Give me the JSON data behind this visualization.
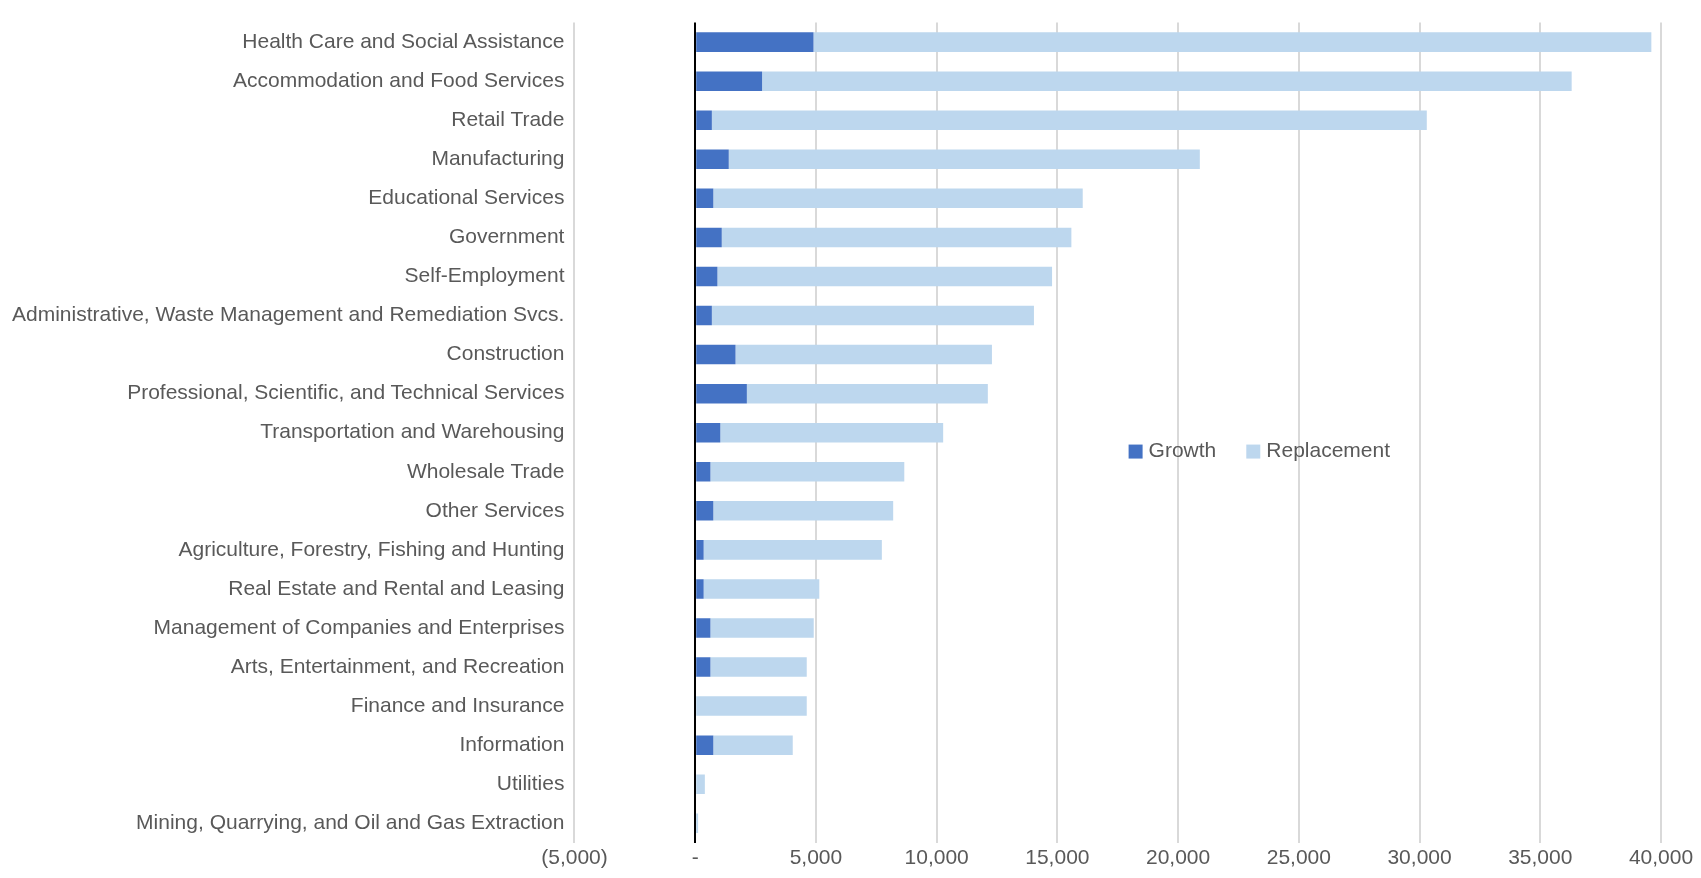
{
  "chart_data": {
    "type": "bar",
    "orientation": "horizontal",
    "stacked": true,
    "categories": [
      "Health Care and Social Assistance",
      "Accommodation and Food Services",
      "Retail Trade",
      "Manufacturing",
      "Educational Services",
      "Government",
      "Self-Employment",
      "Administrative, Waste Management and Remediation Svcs.",
      "Construction",
      "Professional, Scientific, and Technical Services",
      "Transportation and Warehousing",
      "Wholesale Trade",
      "Other Services",
      "Agriculture, Forestry, Fishing and Hunting",
      "Real Estate and Rental and Leasing",
      "Management of Companies and Enterprises",
      "Arts, Entertainment, and Recreation",
      "Finance and Insurance",
      "Information",
      "Utilities",
      "Mining, Quarrying, and Oil and Gas Extraction"
    ],
    "series": [
      {
        "name": "Growth",
        "color": "#4472c4",
        "values": [
          4900,
          2770,
          690,
          1390,
          750,
          1100,
          920,
          690,
          1670,
          2140,
          1040,
          630,
          750,
          350,
          350,
          630,
          630,
          0,
          750,
          0,
          0
        ]
      },
      {
        "name": "Replacement",
        "color": "#bdd7ee",
        "values": [
          34700,
          33530,
          29610,
          19510,
          15300,
          14480,
          13860,
          13340,
          10620,
          9980,
          9230,
          8030,
          7450,
          7380,
          4790,
          4280,
          3990,
          4620,
          3290,
          400,
          120
        ]
      }
    ],
    "xlim": [
      -5000,
      40000
    ],
    "xticks": [
      {
        "value": -5000,
        "label": "(5,000)"
      },
      {
        "value": 0,
        "label": "-"
      },
      {
        "value": 5000,
        "label": "5,000"
      },
      {
        "value": 10000,
        "label": "10,000"
      },
      {
        "value": 15000,
        "label": "15,000"
      },
      {
        "value": 20000,
        "label": "20,000"
      },
      {
        "value": 25000,
        "label": "25,000"
      },
      {
        "value": 30000,
        "label": "30,000"
      },
      {
        "value": 35000,
        "label": "35,000"
      },
      {
        "value": 40000,
        "label": "40,000"
      }
    ],
    "grid": "x",
    "legend": "right"
  }
}
